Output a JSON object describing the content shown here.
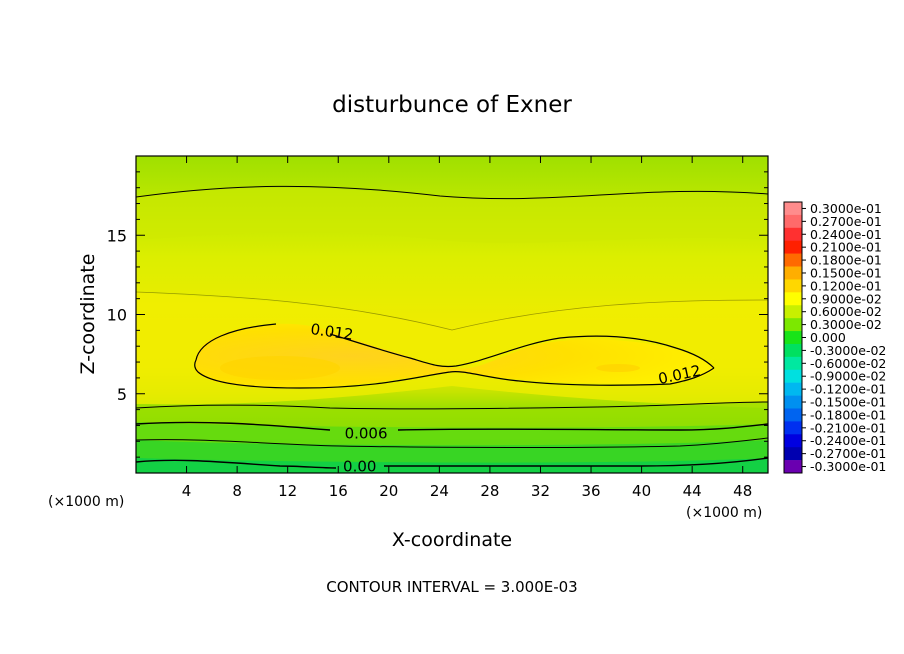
{
  "chart_data": {
    "type": "heatmap",
    "title": "disturbunce of Exner",
    "xlabel": "X-coordinate",
    "ylabel": "Z-coordinate",
    "x_unit": "(×1000 m)",
    "x_unit_right": "(×1000 m)",
    "xlim": [
      0,
      50
    ],
    "ylim": [
      0,
      20
    ],
    "x_ticks": [
      4,
      8,
      12,
      16,
      20,
      24,
      28,
      32,
      36,
      40,
      44,
      48
    ],
    "y_ticks": [
      5,
      10,
      15
    ],
    "footer": "CONTOUR INTERVAL = 3.000E-03",
    "contour_interval": 0.003,
    "contour_labels": [
      {
        "text": "0.012",
        "x": 15.5,
        "y": 8.9,
        "rotate": 8
      },
      {
        "text": "0.012",
        "x": 43.0,
        "y": 6.2,
        "rotate": -12
      },
      {
        "text": "0.006",
        "x": 18.2,
        "y": 2.5,
        "rotate": 0
      },
      {
        "text": "0.00",
        "x": 17.7,
        "y": 0.4,
        "rotate": 0
      }
    ],
    "colorbar": {
      "labels": [
        "0.3000e-01",
        "0.2700e-01",
        "0.2400e-01",
        "0.2100e-01",
        "0.1800e-01",
        "0.1500e-01",
        "0.1200e-01",
        "0.9000e-02",
        "0.6000e-02",
        "0.3000e-02",
        "0.000",
        "-0.3000e-02",
        "-0.6000e-02",
        "-0.9000e-02",
        "-0.1200e-01",
        "-0.1500e-01",
        "-0.1800e-01",
        "-0.2100e-01",
        "-0.2400e-01",
        "-0.2700e-01",
        "-0.3000e-01"
      ],
      "colors": [
        "#ff8c8c",
        "#ff6a6a",
        "#ff3030",
        "#ff2000",
        "#ff6a00",
        "#ffae00",
        "#ffd700",
        "#ffff00",
        "#c8f000",
        "#7ce800",
        "#18e418",
        "#00e060",
        "#00e8a0",
        "#00e0e0",
        "#00b8f0",
        "#0090f0",
        "#0064f0",
        "#0030f0",
        "#0000e0",
        "#0000b0",
        "#6a00b0"
      ]
    }
  }
}
